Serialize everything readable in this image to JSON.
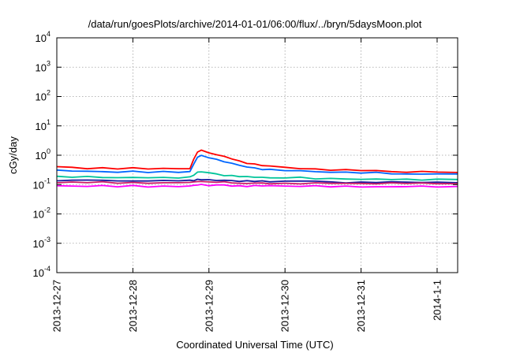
{
  "chart_data": {
    "type": "line",
    "title": "/data/run/goesPlots/archive/2014-01-01/06:00/flux/../bryn/5daysMoon.plot",
    "xlabel": "Coordinated Universal Time (UTC)",
    "ylabel": "cGy/day",
    "yscale": "log",
    "ylim": [
      0.0001,
      10000
    ],
    "xlim_days": [
      0,
      5.27
    ],
    "grid": true,
    "legend": "none",
    "y_ticks": [
      {
        "value": 0.0001,
        "base": "10",
        "exp": "-4"
      },
      {
        "value": 0.001,
        "base": "10",
        "exp": "-3"
      },
      {
        "value": 0.01,
        "base": "10",
        "exp": "-2"
      },
      {
        "value": 0.1,
        "base": "10",
        "exp": "-1"
      },
      {
        "value": 1,
        "base": "10",
        "exp": "0"
      },
      {
        "value": 10,
        "base": "10",
        "exp": "1"
      },
      {
        "value": 100,
        "base": "10",
        "exp": "2"
      },
      {
        "value": 1000,
        "base": "10",
        "exp": "3"
      },
      {
        "value": 10000,
        "base": "10",
        "exp": "4"
      }
    ],
    "x_ticks": [
      {
        "day": 0,
        "label": "2013-12-27"
      },
      {
        "day": 1,
        "label": "2013-12-28"
      },
      {
        "day": 2,
        "label": "2013-12-29"
      },
      {
        "day": 3,
        "label": "2013-12-30"
      },
      {
        "day": 4,
        "label": "2013-12-31"
      },
      {
        "day": 5,
        "label": "2014-1-1"
      }
    ],
    "x": [
      0,
      0.2,
      0.4,
      0.6,
      0.8,
      1.0,
      1.2,
      1.4,
      1.6,
      1.75,
      1.8,
      1.85,
      1.9,
      2.0,
      2.1,
      2.2,
      2.3,
      2.4,
      2.5,
      2.6,
      2.7,
      2.8,
      3.0,
      3.2,
      3.4,
      3.6,
      3.8,
      4.0,
      4.2,
      4.4,
      4.6,
      4.8,
      5.0,
      5.27
    ],
    "series": [
      {
        "color": "#ff0000",
        "values": [
          0.4,
          0.38,
          0.36,
          0.37,
          0.35,
          0.36,
          0.34,
          0.36,
          0.35,
          0.36,
          0.7,
          1.3,
          1.45,
          1.25,
          1.05,
          0.9,
          0.75,
          0.62,
          0.55,
          0.5,
          0.45,
          0.42,
          0.38,
          0.36,
          0.34,
          0.32,
          0.31,
          0.3,
          0.3,
          0.28,
          0.27,
          0.27,
          0.27,
          0.25
        ]
      },
      {
        "color": "#0066ff",
        "values": [
          0.3,
          0.29,
          0.28,
          0.28,
          0.27,
          0.28,
          0.26,
          0.27,
          0.27,
          0.28,
          0.5,
          0.85,
          0.95,
          0.85,
          0.72,
          0.62,
          0.52,
          0.45,
          0.4,
          0.37,
          0.34,
          0.32,
          0.3,
          0.29,
          0.28,
          0.27,
          0.26,
          0.25,
          0.25,
          0.24,
          0.23,
          0.23,
          0.23,
          0.22
        ]
      },
      {
        "color": "#00c49a",
        "values": [
          0.19,
          0.18,
          0.18,
          0.18,
          0.17,
          0.18,
          0.17,
          0.17,
          0.17,
          0.18,
          0.22,
          0.26,
          0.27,
          0.25,
          0.23,
          0.21,
          0.2,
          0.19,
          0.18,
          0.18,
          0.18,
          0.17,
          0.17,
          0.17,
          0.16,
          0.16,
          0.16,
          0.15,
          0.15,
          0.15,
          0.15,
          0.15,
          0.15,
          0.15
        ]
      },
      {
        "color": "#1a1aa0",
        "values": [
          0.14,
          0.14,
          0.14,
          0.14,
          0.13,
          0.14,
          0.13,
          0.14,
          0.13,
          0.14,
          0.14,
          0.15,
          0.15,
          0.14,
          0.14,
          0.14,
          0.14,
          0.13,
          0.13,
          0.13,
          0.13,
          0.13,
          0.13,
          0.13,
          0.13,
          0.12,
          0.12,
          0.12,
          0.12,
          0.12,
          0.12,
          0.12,
          0.12,
          0.12
        ]
      },
      {
        "color": "#cc1a66",
        "values": [
          0.12,
          0.12,
          0.12,
          0.12,
          0.11,
          0.12,
          0.11,
          0.12,
          0.11,
          0.12,
          0.12,
          0.13,
          0.13,
          0.12,
          0.12,
          0.12,
          0.12,
          0.11,
          0.11,
          0.11,
          0.11,
          0.11,
          0.11,
          0.11,
          0.11,
          0.11,
          0.11,
          0.11,
          0.11,
          0.11,
          0.11,
          0.11,
          0.11,
          0.11
        ]
      },
      {
        "color": "#ff00ff",
        "values": [
          0.09,
          0.09,
          0.09,
          0.09,
          0.085,
          0.09,
          0.085,
          0.09,
          0.085,
          0.09,
          0.09,
          0.1,
          0.1,
          0.095,
          0.095,
          0.095,
          0.09,
          0.09,
          0.09,
          0.09,
          0.09,
          0.09,
          0.09,
          0.09,
          0.09,
          0.085,
          0.085,
          0.085,
          0.085,
          0.085,
          0.085,
          0.085,
          0.085,
          0.085
        ]
      }
    ]
  }
}
